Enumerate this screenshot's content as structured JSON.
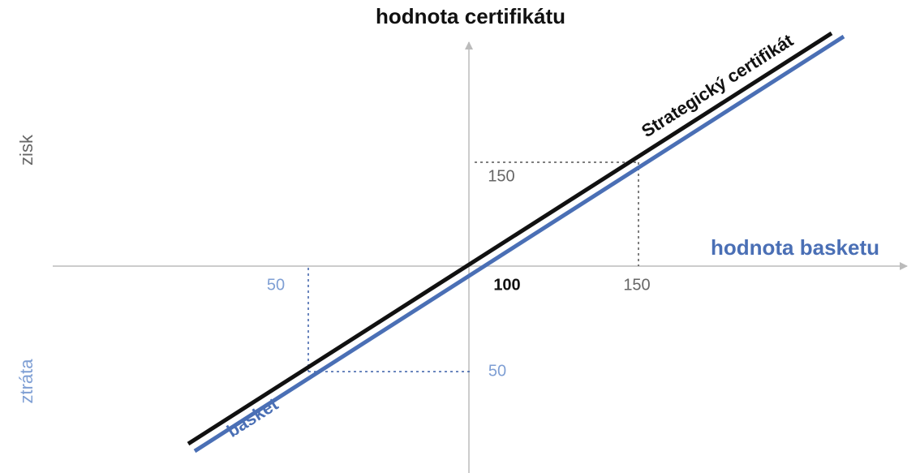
{
  "axes": {
    "y_title": "hodnota certifikátu",
    "x_title": "hodnota basketu",
    "gain": "zisk",
    "loss": "ztráta"
  },
  "lines": {
    "certificate": "Strategický certifikát",
    "basket": "basket"
  },
  "labels": {
    "y_high": "150",
    "y_low": "50",
    "x_low": "50",
    "x_mid": "100",
    "x_high": "150"
  }
}
